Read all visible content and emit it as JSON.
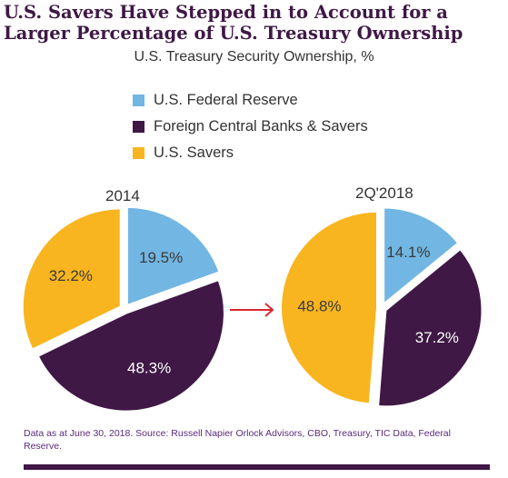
{
  "title_line1": "U.S. Savers Have Stepped in to Account for a",
  "title_line2": "Larger Percentage of U.S. Treasury Ownership",
  "subtitle": "U.S. Treasury Security Ownership, %",
  "legend": [
    {
      "label": "U.S. Federal Reserve",
      "color": "#72b6e3"
    },
    {
      "label": "Foreign Central Banks & Savers",
      "color": "#3f1846"
    },
    {
      "label": "U.S. Savers",
      "color": "#f8b51f"
    }
  ],
  "arrow_color": "#d9282f",
  "chart_data": [
    {
      "type": "pie",
      "title": "2014",
      "slices": [
        {
          "name": "U.S. Federal Reserve",
          "value": 19.5,
          "label": "19.5%",
          "color": "#72b6e3"
        },
        {
          "name": "Foreign Central Banks & Savers",
          "value": 48.3,
          "label": "48.3%",
          "color": "#3f1846"
        },
        {
          "name": "U.S. Savers",
          "value": 32.2,
          "label": "32.2%",
          "color": "#f8b51f"
        }
      ]
    },
    {
      "type": "pie",
      "title": "2Q'2018",
      "slices": [
        {
          "name": "U.S. Federal Reserve",
          "value": 14.1,
          "label": "14.1%",
          "color": "#72b6e3"
        },
        {
          "name": "Foreign Central Banks & Savers",
          "value": 37.2,
          "label": "37.2%",
          "color": "#3f1846"
        },
        {
          "name": "U.S. Savers",
          "value": 48.8,
          "label": "48.8%",
          "color": "#f8b51f"
        }
      ]
    }
  ],
  "footnote": "Data as at June 30, 2018. Source: Russell Napier Orlock Advisors, CBO, Treasury, TIC Data, Federal Reserve."
}
